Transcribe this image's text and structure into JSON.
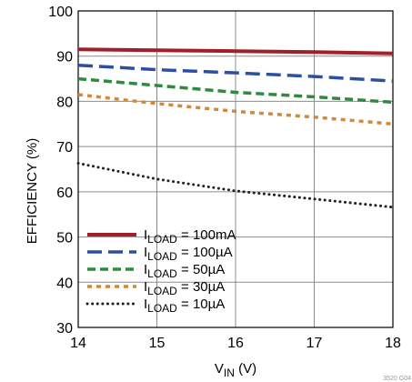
{
  "chart_data": {
    "type": "line",
    "xlabel_main": "V",
    "xlabel_sub": "IN",
    "xlabel_unit": " (V)",
    "ylabel": "EFFICIENCY (%)",
    "xlim": [
      14,
      18
    ],
    "ylim": [
      30,
      100
    ],
    "xticks": [
      "14",
      "15",
      "16",
      "17",
      "18"
    ],
    "yticks": [
      "30",
      "40",
      "50",
      "60",
      "70",
      "80",
      "90",
      "100"
    ],
    "grid": true,
    "legend_position": "lower-left",
    "series": [
      {
        "name_main": "I",
        "name_sub": "LOAD",
        "name_value": " = 100mA",
        "color": "#a11f2b",
        "style": "solid",
        "x": [
          14,
          15,
          16,
          17,
          18
        ],
        "y": [
          91.5,
          91.3,
          91.1,
          90.9,
          90.6
        ]
      },
      {
        "name_main": "I",
        "name_sub": "LOAD",
        "name_value": " = 100µA",
        "color": "#2b4fa2",
        "style": "longdash",
        "x": [
          14,
          15,
          16,
          17,
          18
        ],
        "y": [
          88.0,
          87.0,
          86.3,
          85.5,
          84.5
        ]
      },
      {
        "name_main": "I",
        "name_sub": "LOAD",
        "name_value": " = 50µA",
        "color": "#2f8a3e",
        "style": "dash",
        "x": [
          14,
          15,
          16,
          17,
          18
        ],
        "y": [
          85.0,
          83.5,
          82.0,
          81.0,
          79.8
        ]
      },
      {
        "name_main": "I",
        "name_sub": "LOAD",
        "name_value": " = 30µA",
        "color": "#d08a3a",
        "style": "shortdash",
        "x": [
          14,
          15,
          16,
          17,
          18
        ],
        "y": [
          81.5,
          79.5,
          77.8,
          76.5,
          75.0
        ]
      },
      {
        "name_main": "I",
        "name_sub": "LOAD",
        "name_value": " = 10µA",
        "color": "#222222",
        "style": "dot",
        "x": [
          14,
          15,
          16,
          17,
          18
        ],
        "y": [
          66.3,
          62.8,
          60.2,
          58.4,
          56.6
        ]
      }
    ]
  },
  "figure_code": "3520 G04"
}
